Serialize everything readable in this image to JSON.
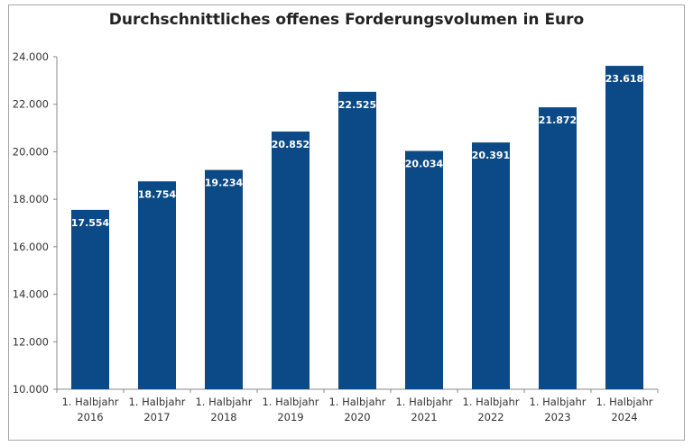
{
  "chart_data": {
    "type": "bar",
    "title": "Durchschnittliches offenes Forderungsvolumen in Euro",
    "categories": [
      [
        "1. Halbjahr",
        "2016"
      ],
      [
        "1. Halbjahr",
        "2017"
      ],
      [
        "1. Halbjahr",
        "2018"
      ],
      [
        "1. Halbjahr",
        "2019"
      ],
      [
        "1. Halbjahr",
        "2020"
      ],
      [
        "1. Halbjahr",
        "2021"
      ],
      [
        "1. Halbjahr",
        "2022"
      ],
      [
        "1. Halbjahr",
        "2023"
      ],
      [
        "1. Halbjahr",
        "2024"
      ]
    ],
    "values": [
      17554,
      18754,
      19234,
      20852,
      22525,
      20034,
      20391,
      21872,
      23618
    ],
    "data_labels": [
      "17.554",
      "18.754",
      "19.234",
      "20.852",
      "22.525",
      "20.034",
      "20.391",
      "21.872",
      "23.618"
    ],
    "ylim": [
      10000,
      24000
    ],
    "yticks": [
      10000,
      12000,
      14000,
      16000,
      18000,
      20000,
      22000,
      24000
    ],
    "ytick_labels": [
      "10.000",
      "12.000",
      "14.000",
      "16.000",
      "18.000",
      "20.000",
      "22.000",
      "24.000"
    ],
    "xlabel": "",
    "ylabel": "",
    "grid": false,
    "legend": "none",
    "bar_color": "#0b4a86"
  }
}
